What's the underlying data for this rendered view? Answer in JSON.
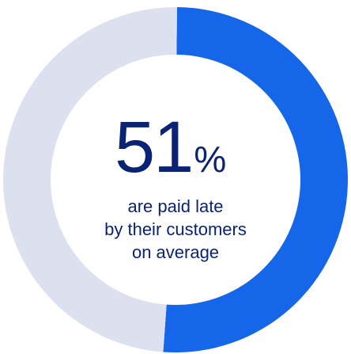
{
  "chart_data": {
    "type": "pie",
    "variant": "donut",
    "slices": [
      {
        "value": 51,
        "color": "#1566e8"
      },
      {
        "value": 49,
        "color": "#dde1ef"
      }
    ],
    "center_value": "51",
    "center_unit": "%",
    "caption_lines": [
      "are paid late",
      "by their customers",
      "on average"
    ]
  },
  "colors": {
    "text": "#0a2473",
    "accent": "#1566e8",
    "track": "#dde1ef"
  }
}
